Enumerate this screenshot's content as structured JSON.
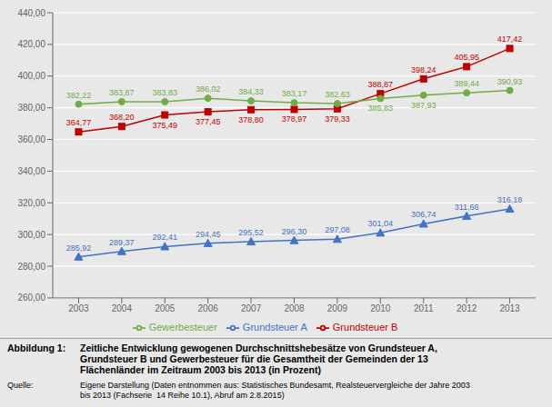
{
  "chart_data": {
    "type": "line",
    "x": [
      2003,
      2004,
      2005,
      2006,
      2007,
      2008,
      2009,
      2010,
      2011,
      2012,
      2013
    ],
    "xlim": [
      2002.4,
      2013.6
    ],
    "xticks": [
      2003,
      2004,
      2005,
      2006,
      2007,
      2008,
      2009,
      2010,
      2011,
      2012,
      2013
    ],
    "ylim": [
      260,
      440
    ],
    "yticks": [
      {
        "value": 260,
        "label": "260,00"
      },
      {
        "value": 280,
        "label": "280,00"
      },
      {
        "value": 300,
        "label": "300,00"
      },
      {
        "value": 320,
        "label": "320,00"
      },
      {
        "value": 340,
        "label": "340,00"
      },
      {
        "value": 360,
        "label": "360,00"
      },
      {
        "value": 380,
        "label": "380,00"
      },
      {
        "value": 400,
        "label": "400,00"
      },
      {
        "value": 420,
        "label": "420,00"
      },
      {
        "value": 440,
        "label": "440,00"
      }
    ],
    "grid": true,
    "legend": "bottom",
    "data_labels": true,
    "series": [
      {
        "name": "Grundsteuer A",
        "color": "#4472C4",
        "marker": "triangle",
        "values": [
          285.92,
          289.37,
          292.41,
          294.45,
          295.52,
          296.3,
          297.08,
          301.04,
          306.74,
          311.66,
          316.18
        ],
        "value_labels": [
          "285,92",
          "289,37",
          "292,41",
          "294,45",
          "295,52",
          "296,30",
          "297,08",
          "301,04",
          "306,74",
          "311,66",
          "316,18"
        ]
      },
      {
        "name": "Grundsteuer B",
        "color": "#C00000",
        "marker": "square",
        "values": [
          364.77,
          368.2,
          375.49,
          377.45,
          378.8,
          378.97,
          379.33,
          388.87,
          398.24,
          405.95,
          417.42
        ],
        "value_labels": [
          "364,77",
          "368,20",
          "375,49",
          "377,45",
          "378,80",
          "378,97",
          "379,33",
          "388,87",
          "398,24",
          "405,95",
          "417,42"
        ]
      },
      {
        "name": "Gewerbesteuer",
        "color": "#70AD47",
        "marker": "circle",
        "values": [
          382.22,
          383.87,
          383.83,
          386.02,
          384.33,
          383.17,
          382.63,
          385.83,
          387.93,
          389.44,
          390.93
        ],
        "value_labels": [
          "382,22",
          "383,87",
          "383,83",
          "386,02",
          "384,33",
          "383,17",
          "382,63",
          "385,83",
          "387,93",
          "389,44",
          "390,93"
        ]
      }
    ],
    "annotations": [
      "Abbildung 1:",
      "Zeitliche Entwicklung gewogenen Durchschnittshebesätze von Grundsteuer A,\nGrundsteuer B und Gewerbesteuer für die Gesamtheit der Gemeinden der 13\nFlächenländer im Zeitraum 2003 bis 2013 (in Prozent)",
      "Quelle:",
      "Eigene Darstellung (Daten entnommen aus: Statistisches Bundesamt, Realsteuervergleiche der Jahre 2003\nbis 2013 (Fachserie  14 Reihe 10.1), Abruf am 2.8.2015)"
    ]
  }
}
